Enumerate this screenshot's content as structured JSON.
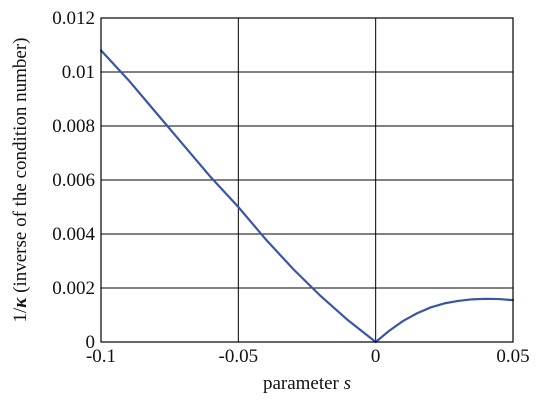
{
  "chart_data": {
    "type": "line",
    "title": "",
    "xlabel_prefix": "parameter ",
    "xlabel_var": "s",
    "ylabel_prefix": "1/",
    "ylabel_var": "κ",
    "ylabel_suffix": " (inverse of the condition number)",
    "xlim": [
      -0.1,
      0.05
    ],
    "ylim": [
      0,
      0.012
    ],
    "x_ticks": [
      -0.1,
      -0.05,
      0,
      0.05
    ],
    "x_tick_labels": [
      "-0.1",
      "-0.05",
      "0",
      "0.05"
    ],
    "y_ticks": [
      0,
      0.002,
      0.004,
      0.006,
      0.008,
      0.01,
      0.012
    ],
    "y_tick_labels": [
      "0",
      "0.002",
      "0.004",
      "0.006",
      "0.008",
      "0.01",
      "0.012"
    ],
    "grid": true,
    "series_color": "#3a55a4",
    "series": [
      {
        "x": [
          -0.1,
          -0.09,
          -0.08,
          -0.07,
          -0.06,
          -0.05,
          -0.04,
          -0.03,
          -0.02,
          -0.01,
          0,
          0.005,
          0.01,
          0.015,
          0.02,
          0.025,
          0.03,
          0.035,
          0.04,
          0.045,
          0.05
        ],
        "y": [
          0.0108,
          0.0097,
          0.0085,
          0.0073,
          0.0061,
          0.005,
          0.0038,
          0.0027,
          0.0017,
          0.0008,
          0.0,
          0.00042,
          0.00078,
          0.00106,
          0.00128,
          0.00143,
          0.00152,
          0.00158,
          0.0016,
          0.00159,
          0.00155
        ]
      }
    ]
  }
}
